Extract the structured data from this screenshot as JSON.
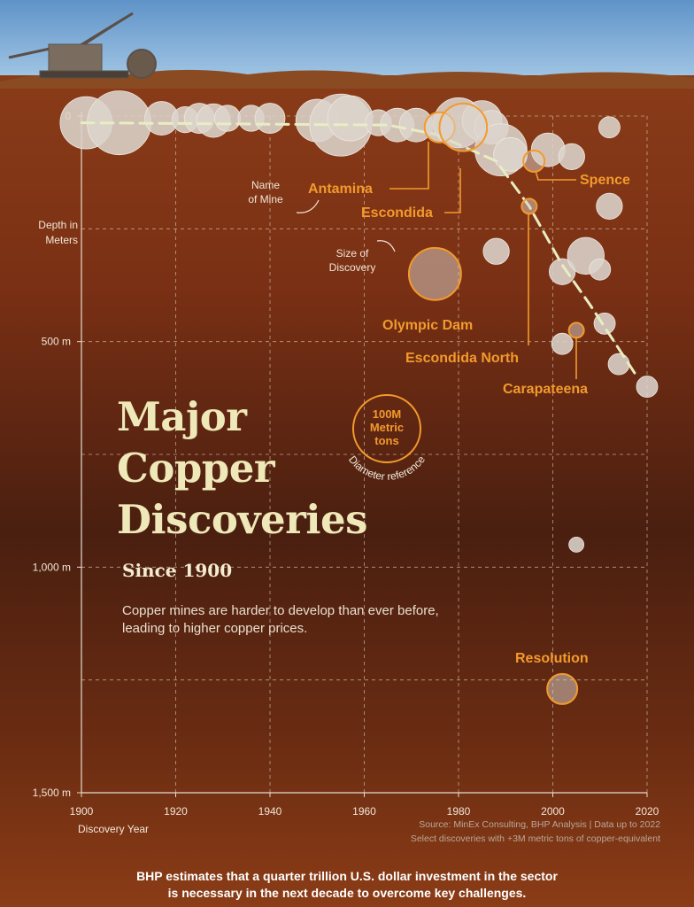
{
  "chart_data": {
    "type": "scatter",
    "title": "Major Copper Discoveries",
    "subtitle": "Since 1900",
    "description": "Copper mines are harder to develop than ever before, leading to higher copper prices.",
    "xlabel": "Discovery Year",
    "ylabel": "Depth in Meters",
    "xlim": [
      1900,
      2020
    ],
    "ylim": [
      0,
      1500
    ],
    "y_inverted": true,
    "x_ticks": [
      "1900",
      "1920",
      "1940",
      "1960",
      "1980",
      "2000",
      "2020"
    ],
    "y_ticks": [
      {
        "value": 0,
        "label": "0"
      },
      {
        "value": 500,
        "label": "500 m"
      },
      {
        "value": 1000,
        "label": "1,000 m"
      },
      {
        "value": 1500,
        "label": "1,500 m"
      }
    ],
    "size_unit": "Million metric tons copper-equivalent",
    "size_reference": {
      "value": 100,
      "label_lines": [
        "100M",
        "Metric",
        "tons"
      ],
      "caption": "Diameter reference"
    },
    "annotations": {
      "name_hint": [
        "Name",
        "of Mine"
      ],
      "size_hint": [
        "Size of",
        "Discovery"
      ]
    },
    "trend_line": [
      [
        1900,
        15
      ],
      [
        1965,
        20
      ],
      [
        1975,
        40
      ],
      [
        1988,
        100
      ],
      [
        1995,
        200
      ],
      [
        2002,
        330
      ],
      [
        2008,
        420
      ],
      [
        2018,
        580
      ]
    ],
    "points": [
      {
        "x": 1901,
        "y": 15,
        "size": 60
      },
      {
        "x": 1908,
        "y": 15,
        "size": 90
      },
      {
        "x": 1917,
        "y": 5,
        "size": 25
      },
      {
        "x": 1922,
        "y": 8,
        "size": 15
      },
      {
        "x": 1925,
        "y": 5,
        "size": 20
      },
      {
        "x": 1928,
        "y": 10,
        "size": 25
      },
      {
        "x": 1931,
        "y": 5,
        "size": 15
      },
      {
        "x": 1936,
        "y": 5,
        "size": 15
      },
      {
        "x": 1940,
        "y": 5,
        "size": 20
      },
      {
        "x": 1950,
        "y": 10,
        "size": 40
      },
      {
        "x": 1955,
        "y": 20,
        "size": 85
      },
      {
        "x": 1957,
        "y": 5,
        "size": 45
      },
      {
        "x": 1963,
        "y": 15,
        "size": 15
      },
      {
        "x": 1967,
        "y": 20,
        "size": 25
      },
      {
        "x": 1971,
        "y": 20,
        "size": 25
      },
      {
        "x": 1976,
        "y": 25,
        "size": 20
      },
      {
        "x": 1980,
        "y": 15,
        "size": 55
      },
      {
        "x": 1985,
        "y": 10,
        "size": 35
      },
      {
        "x": 1987,
        "y": 25,
        "size": 25
      },
      {
        "x": 1989,
        "y": 75,
        "size": 60
      },
      {
        "x": 1991,
        "y": 85,
        "size": 25
      },
      {
        "x": 1999,
        "y": 75,
        "size": 25
      },
      {
        "x": 2004,
        "y": 90,
        "size": 15
      },
      {
        "x": 2012,
        "y": 25,
        "size": 10
      },
      {
        "x": 2012,
        "y": 200,
        "size": 15
      },
      {
        "x": 1988,
        "y": 300,
        "size": 15
      },
      {
        "x": 2002,
        "y": 345,
        "size": 15
      },
      {
        "x": 2007,
        "y": 310,
        "size": 30
      },
      {
        "x": 2010,
        "y": 340,
        "size": 10
      },
      {
        "x": 2011,
        "y": 460,
        "size": 10
      },
      {
        "x": 2002,
        "y": 505,
        "size": 10
      },
      {
        "x": 2014,
        "y": 550,
        "size": 10
      },
      {
        "x": 2020,
        "y": 600,
        "size": 10
      },
      {
        "x": 2005,
        "y": 950,
        "size": 5
      }
    ],
    "named_mines": [
      {
        "name": "Antamina",
        "x": 1976,
        "y": 25,
        "size": 20
      },
      {
        "name": "Escondida",
        "x": 1981,
        "y": 25,
        "size": 50
      },
      {
        "name": "Spence",
        "x": 1996,
        "y": 100,
        "size": 10
      },
      {
        "name": "Escondida North",
        "x": 1995,
        "y": 200,
        "size": 5
      },
      {
        "name": "Olympic Dam",
        "x": 1975,
        "y": 350,
        "size": 60
      },
      {
        "name": "Carapateena",
        "x": 2005,
        "y": 475,
        "size": 5
      },
      {
        "name": "Resolution",
        "x": 2002,
        "y": 1270,
        "size": 20
      }
    ]
  },
  "source_lines": [
    "Source: MinEx Consulting, BHP Analysis | Data up to 2022",
    "Select discoveries with +3M metric tons of copper-equivalent"
  ],
  "footer_lines": [
    "BHP estimates that a quarter trillion U.S. dollar investment in the sector",
    "is necessary in the next decade to overcome key challenges."
  ],
  "colors": {
    "accent": "#f39a2c",
    "bubble": "#dcd4cc",
    "trend": "#e9edc2",
    "title": "#efe8b8",
    "sky": "#7fb0da",
    "soil": "#7a3416"
  }
}
